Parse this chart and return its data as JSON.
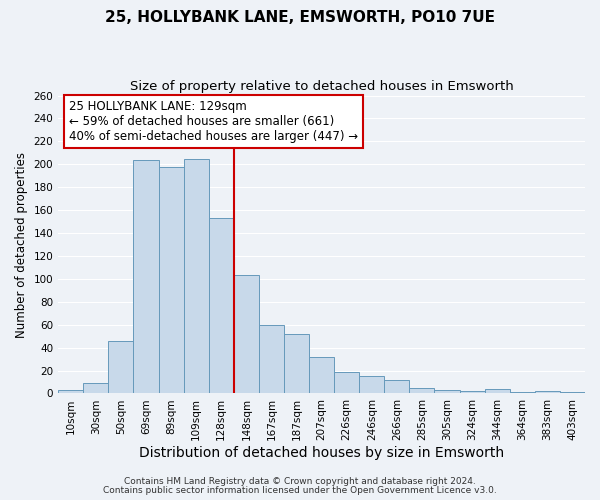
{
  "title": "25, HOLLYBANK LANE, EMSWORTH, PO10 7UE",
  "subtitle": "Size of property relative to detached houses in Emsworth",
  "xlabel": "Distribution of detached houses by size in Emsworth",
  "ylabel": "Number of detached properties",
  "bar_labels": [
    "10sqm",
    "30sqm",
    "50sqm",
    "69sqm",
    "89sqm",
    "109sqm",
    "128sqm",
    "148sqm",
    "167sqm",
    "187sqm",
    "207sqm",
    "226sqm",
    "246sqm",
    "266sqm",
    "285sqm",
    "305sqm",
    "324sqm",
    "344sqm",
    "364sqm",
    "383sqm",
    "403sqm"
  ],
  "bar_values": [
    3,
    9,
    46,
    204,
    198,
    205,
    153,
    103,
    60,
    52,
    32,
    19,
    15,
    12,
    5,
    3,
    2,
    4,
    1,
    2,
    1
  ],
  "bar_color": "#c8d9ea",
  "bar_edge_color": "#6699bb",
  "vline_x_index": 6,
  "vline_color": "#cc0000",
  "annotation_title": "25 HOLLYBANK LANE: 129sqm",
  "annotation_line1": "← 59% of detached houses are smaller (661)",
  "annotation_line2": "40% of semi-detached houses are larger (447) →",
  "annotation_box_color": "#ffffff",
  "annotation_box_edge_color": "#cc0000",
  "ylim": [
    0,
    260
  ],
  "ytick_max": 260,
  "ytick_step": 20,
  "footnote1": "Contains HM Land Registry data © Crown copyright and database right 2024.",
  "footnote2": "Contains public sector information licensed under the Open Government Licence v3.0.",
  "background_color": "#eef2f7",
  "grid_color": "#ffffff",
  "title_fontsize": 11,
  "subtitle_fontsize": 9.5,
  "xlabel_fontsize": 10,
  "ylabel_fontsize": 8.5,
  "tick_fontsize": 7.5,
  "annotation_fontsize": 8.5,
  "footnote_fontsize": 6.5
}
